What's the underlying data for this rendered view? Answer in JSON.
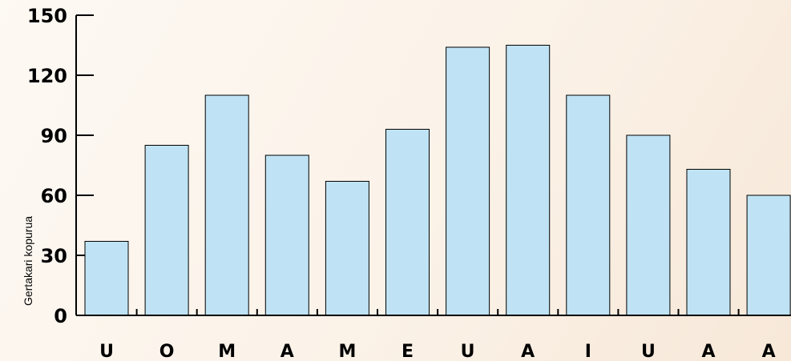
{
  "chart_data": {
    "type": "bar",
    "title": "",
    "xlabel": "",
    "ylabel": "Gertakari kopurua",
    "categories": [
      "U",
      "O",
      "M",
      "A",
      "M",
      "E",
      "U",
      "A",
      "I",
      "U",
      "A",
      "A"
    ],
    "values": [
      37,
      85,
      110,
      80,
      67,
      93,
      134,
      135,
      110,
      90,
      73,
      60
    ],
    "ylim": [
      0,
      150
    ],
    "yticks": [
      0,
      30,
      60,
      90,
      120,
      150
    ],
    "grid": false,
    "legend": "none",
    "bar_color": "#bfe3f4",
    "bar_edge_color": "#000000",
    "background_color": "#fbf2e8"
  }
}
